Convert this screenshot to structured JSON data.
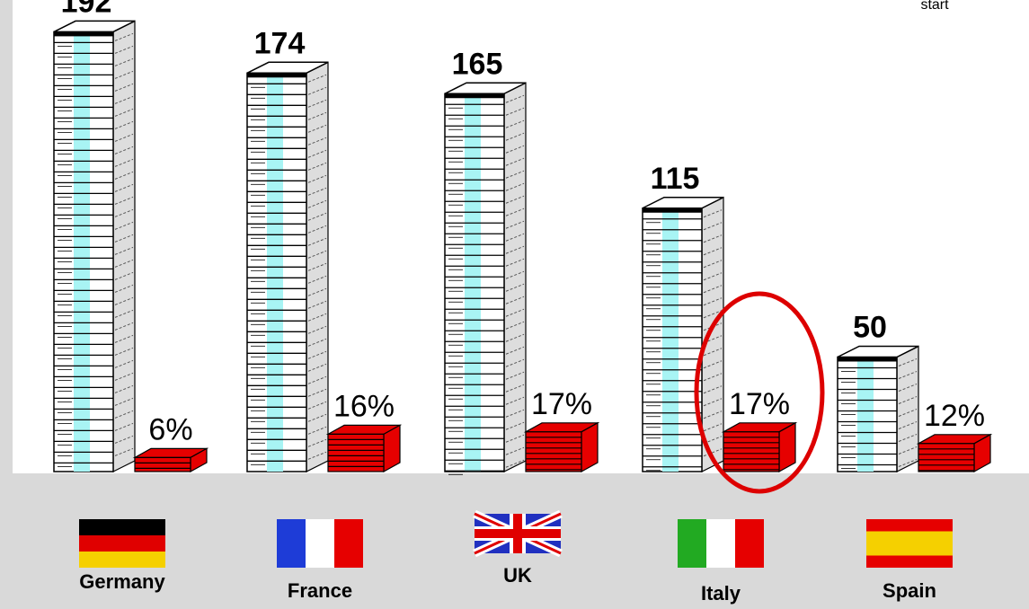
{
  "corner_label": "start",
  "highlight_country": "Italy",
  "colors": {
    "background": "#d9d9d9",
    "panel": "#ffffff",
    "stack_accent": "#a8f4f4",
    "stack_side": "#dddddd",
    "percent_stack": "#e60000",
    "highlight_circle": "#dd0000"
  },
  "chart_data": {
    "type": "bar",
    "categories": [
      "Germany",
      "France",
      "UK",
      "Italy",
      "Spain"
    ],
    "value_labels": [
      "192",
      "174",
      "165",
      "115",
      "50"
    ],
    "percent_labels": [
      "6%",
      "16%",
      "17%",
      "17%",
      "12%"
    ],
    "series": [
      {
        "values": [
          192,
          174,
          165,
          115,
          50
        ]
      },
      {
        "values": [
          6,
          16,
          17,
          17,
          12
        ]
      }
    ],
    "flags": [
      {
        "country": "Germany",
        "pattern": "horizontal",
        "colors": [
          "#000000",
          "#e00000",
          "#f5d000"
        ]
      },
      {
        "country": "France",
        "pattern": "vertical",
        "colors": [
          "#1e3cd7",
          "#ffffff",
          "#e60000"
        ]
      },
      {
        "country": "UK",
        "pattern": "union",
        "colors": [
          "#2030c0",
          "#ffffff",
          "#e00000"
        ]
      },
      {
        "country": "Italy",
        "pattern": "vertical",
        "colors": [
          "#22aa22",
          "#ffffff",
          "#e60000"
        ]
      },
      {
        "country": "Spain",
        "pattern": "horizontal-spain",
        "colors": [
          "#e60000",
          "#f5d000",
          "#e60000"
        ]
      }
    ]
  }
}
